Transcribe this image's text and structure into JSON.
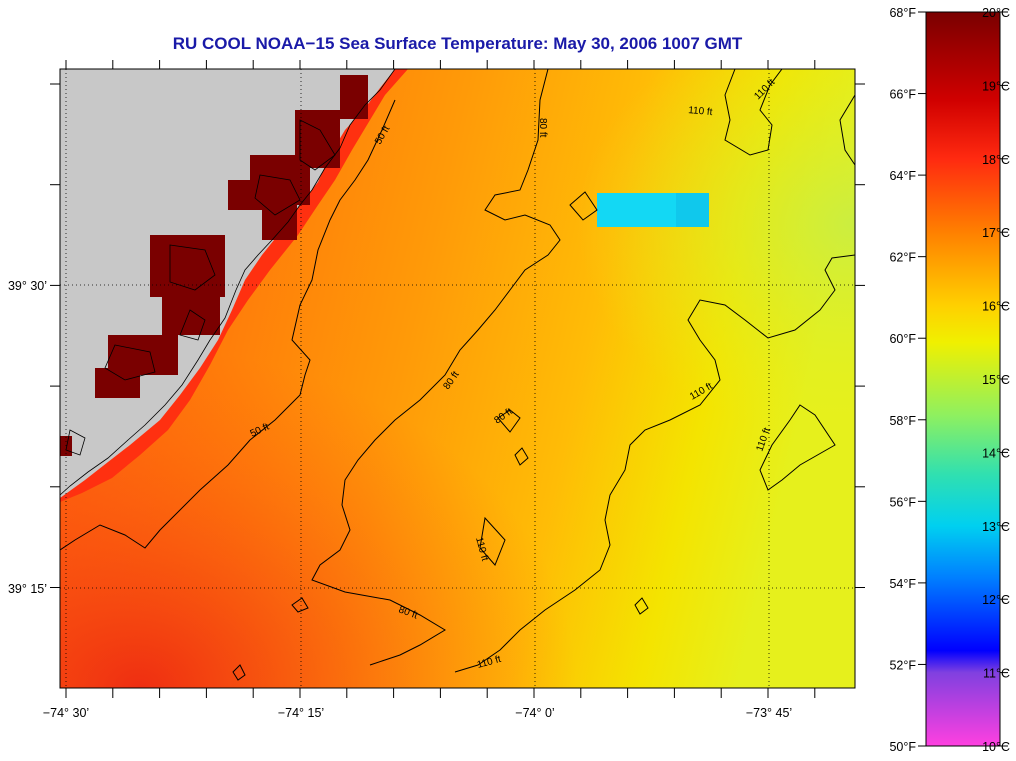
{
  "title": "RU COOL  NOAA−15  Sea Surface Temperature:  May 30, 2006 1007 GMT",
  "lon_labels": [
    "−74° 30’",
    "−74° 15’",
    "−74° 0’",
    "−73° 45’"
  ],
  "lat_labels": [
    "39° 30’",
    "39° 15’"
  ],
  "depth_labels": [
    "50 ft",
    "80 ft",
    "110 ft"
  ],
  "colorbar": {
    "fahrenheit": [
      "68°F",
      "66°F",
      "64°F",
      "62°F",
      "60°F",
      "58°F",
      "56°F",
      "54°F",
      "52°F",
      "50°F"
    ],
    "celsius": [
      "20°C",
      "19°C",
      "18°C",
      "17°C",
      "16°C",
      "15°C",
      "14°C",
      "13°C",
      "12°C",
      "11°C",
      "10°C"
    ],
    "colors": [
      "#7a0000",
      "#c00000",
      "#ff1414",
      "#ff6a00",
      "#ffb400",
      "#f5f500",
      "#aef04a",
      "#36e0a0",
      "#00d0f0",
      "#0080ff",
      "#0000ff",
      "#a040e0",
      "#ff40e0"
    ]
  },
  "map_colors": {
    "land": "#c8c8c8",
    "coast_warm": "#7a0000",
    "anomaly_patch": "#13d8f4"
  }
}
